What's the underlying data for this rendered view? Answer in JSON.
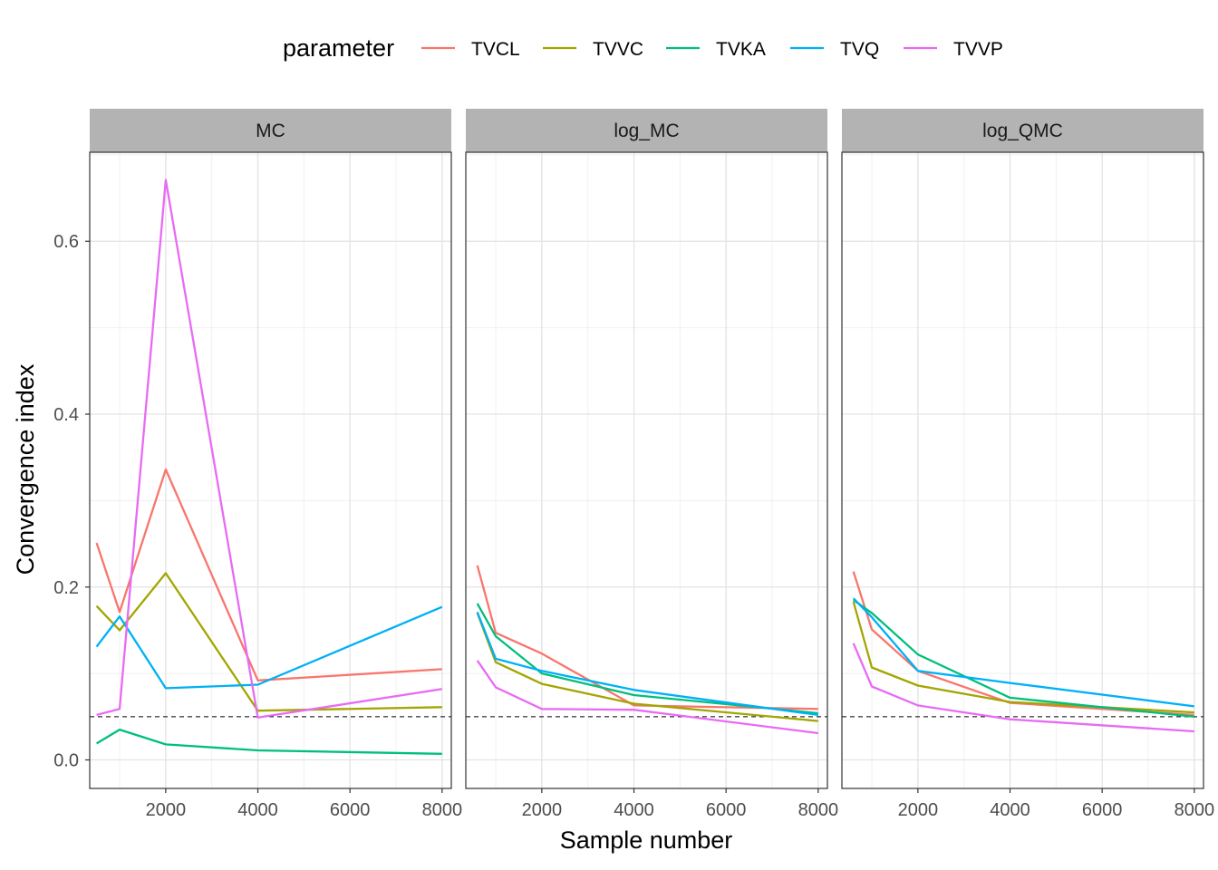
{
  "chart_data": {
    "type": "line",
    "facets": [
      "MC",
      "log_MC",
      "log_QMC"
    ],
    "xlabel": "Sample number",
    "ylabel": "Convergence index",
    "xlim": [
      350,
      8200
    ],
    "ylim": [
      -0.033,
      0.703
    ],
    "x_ticks": [
      2000,
      4000,
      6000,
      8000
    ],
    "y_ticks": [
      0.0,
      0.2,
      0.4,
      0.6
    ],
    "y_tick_labels": [
      "0.0",
      "0.2",
      "0.4",
      "0.6"
    ],
    "x_tick_labels": [
      "2000",
      "4000",
      "6000",
      "8000"
    ],
    "reference_line": {
      "y": 0.05,
      "style": "dashed"
    },
    "legend": {
      "title": "parameter",
      "placement": "top"
    },
    "grid": true,
    "series": [
      {
        "name": "TVCL",
        "color": "#F8766D",
        "data": {
          "MC": {
            "x": [
              500,
              1000,
              2000,
              4000,
              8000
            ],
            "y": [
              0.251,
              0.171,
              0.336,
              0.092,
              0.105
            ]
          },
          "log_MC": {
            "x": [
              600,
              1000,
              2000,
              4000,
              8000
            ],
            "y": [
              0.225,
              0.147,
              0.123,
              0.063,
              0.059
            ]
          },
          "log_QMC": {
            "x": [
              600,
              1000,
              2000,
              4000,
              8000
            ],
            "y": [
              0.218,
              0.151,
              0.103,
              0.066,
              0.052
            ]
          }
        }
      },
      {
        "name": "TVVC",
        "color": "#A3A500",
        "data": {
          "MC": {
            "x": [
              500,
              1000,
              2000,
              4000,
              8000
            ],
            "y": [
              0.178,
              0.15,
              0.216,
              0.057,
              0.061
            ]
          },
          "log_MC": {
            "x": [
              600,
              1000,
              2000,
              4000,
              8000
            ],
            "y": [
              0.17,
              0.113,
              0.088,
              0.065,
              0.045
            ]
          },
          "log_QMC": {
            "x": [
              600,
              1000,
              2000,
              4000,
              8000
            ],
            "y": [
              0.183,
              0.107,
              0.086,
              0.067,
              0.055
            ]
          }
        }
      },
      {
        "name": "TVKA",
        "color": "#00BF7D",
        "data": {
          "MC": {
            "x": [
              500,
              1000,
              2000,
              4000,
              8000
            ],
            "y": [
              0.019,
              0.035,
              0.018,
              0.011,
              0.007
            ]
          },
          "log_MC": {
            "x": [
              600,
              1000,
              2000,
              4000,
              8000
            ],
            "y": [
              0.181,
              0.143,
              0.1,
              0.075,
              0.054
            ]
          },
          "log_QMC": {
            "x": [
              600,
              1000,
              2000,
              4000,
              8000
            ],
            "y": [
              0.185,
              0.17,
              0.122,
              0.072,
              0.05
            ]
          }
        }
      },
      {
        "name": "TVQ",
        "color": "#00B0F6",
        "data": {
          "MC": {
            "x": [
              500,
              1000,
              2000,
              4000,
              8000
            ],
            "y": [
              0.131,
              0.166,
              0.083,
              0.087,
              0.177
            ]
          },
          "log_MC": {
            "x": [
              600,
              1000,
              2000,
              4000,
              8000
            ],
            "y": [
              0.171,
              0.117,
              0.103,
              0.081,
              0.052
            ]
          },
          "log_QMC": {
            "x": [
              600,
              1000,
              2000,
              4000,
              8000
            ],
            "y": [
              0.187,
              0.165,
              0.103,
              0.089,
              0.062
            ]
          }
        }
      },
      {
        "name": "TVVP",
        "color": "#E76BF3",
        "data": {
          "MC": {
            "x": [
              500,
              1000,
              2000,
              4000,
              8000
            ],
            "y": [
              0.052,
              0.059,
              0.671,
              0.049,
              0.082
            ]
          },
          "log_MC": {
            "x": [
              600,
              1000,
              2000,
              4000,
              8000
            ],
            "y": [
              0.115,
              0.084,
              0.059,
              0.058,
              0.031
            ]
          },
          "log_QMC": {
            "x": [
              600,
              1000,
              2000,
              4000,
              8000
            ],
            "y": [
              0.135,
              0.085,
              0.063,
              0.047,
              0.033
            ]
          }
        }
      }
    ]
  }
}
